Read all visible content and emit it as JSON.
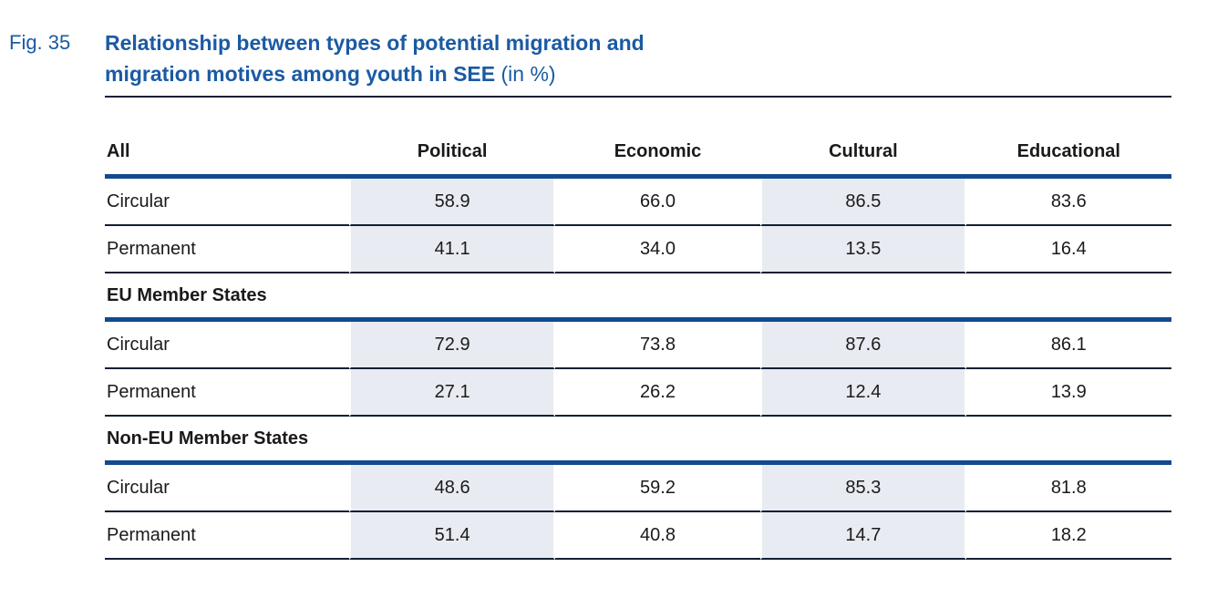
{
  "figure": {
    "label": "Fig. 35",
    "title_line1": "Relationship between types of potential migration and",
    "title_line2": "migration motives among youth in SEE",
    "title_suffix": "(in %)"
  },
  "table": {
    "columns": [
      "Political",
      "Economic",
      "Cultural",
      "Educational"
    ],
    "sections": [
      {
        "header": "All",
        "rows": [
          {
            "label": "Circular",
            "values": [
              "58.9",
              "66.0",
              "86.5",
              "83.6"
            ]
          },
          {
            "label": "Permanent",
            "values": [
              "41.1",
              "34.0",
              "13.5",
              "16.4"
            ]
          }
        ]
      },
      {
        "header": "EU Member States",
        "rows": [
          {
            "label": "Circular",
            "values": [
              "72.9",
              "73.8",
              "87.6",
              "86.1"
            ]
          },
          {
            "label": "Permanent",
            "values": [
              "27.1",
              "26.2",
              "12.4",
              "13.9"
            ]
          }
        ]
      },
      {
        "header": "Non-EU Member States",
        "rows": [
          {
            "label": "Circular",
            "values": [
              "48.6",
              "59.2",
              "85.3",
              "81.8"
            ]
          },
          {
            "label": "Permanent",
            "values": [
              "51.4",
              "40.8",
              "14.7",
              "18.2"
            ]
          }
        ]
      }
    ]
  },
  "colors": {
    "title_blue": "#1a5aa3",
    "section_band_blue": "#114a8f",
    "thin_rule_dark": "#121f33",
    "column_shade": "#e8ebf1",
    "text": "#1a1a1a"
  }
}
